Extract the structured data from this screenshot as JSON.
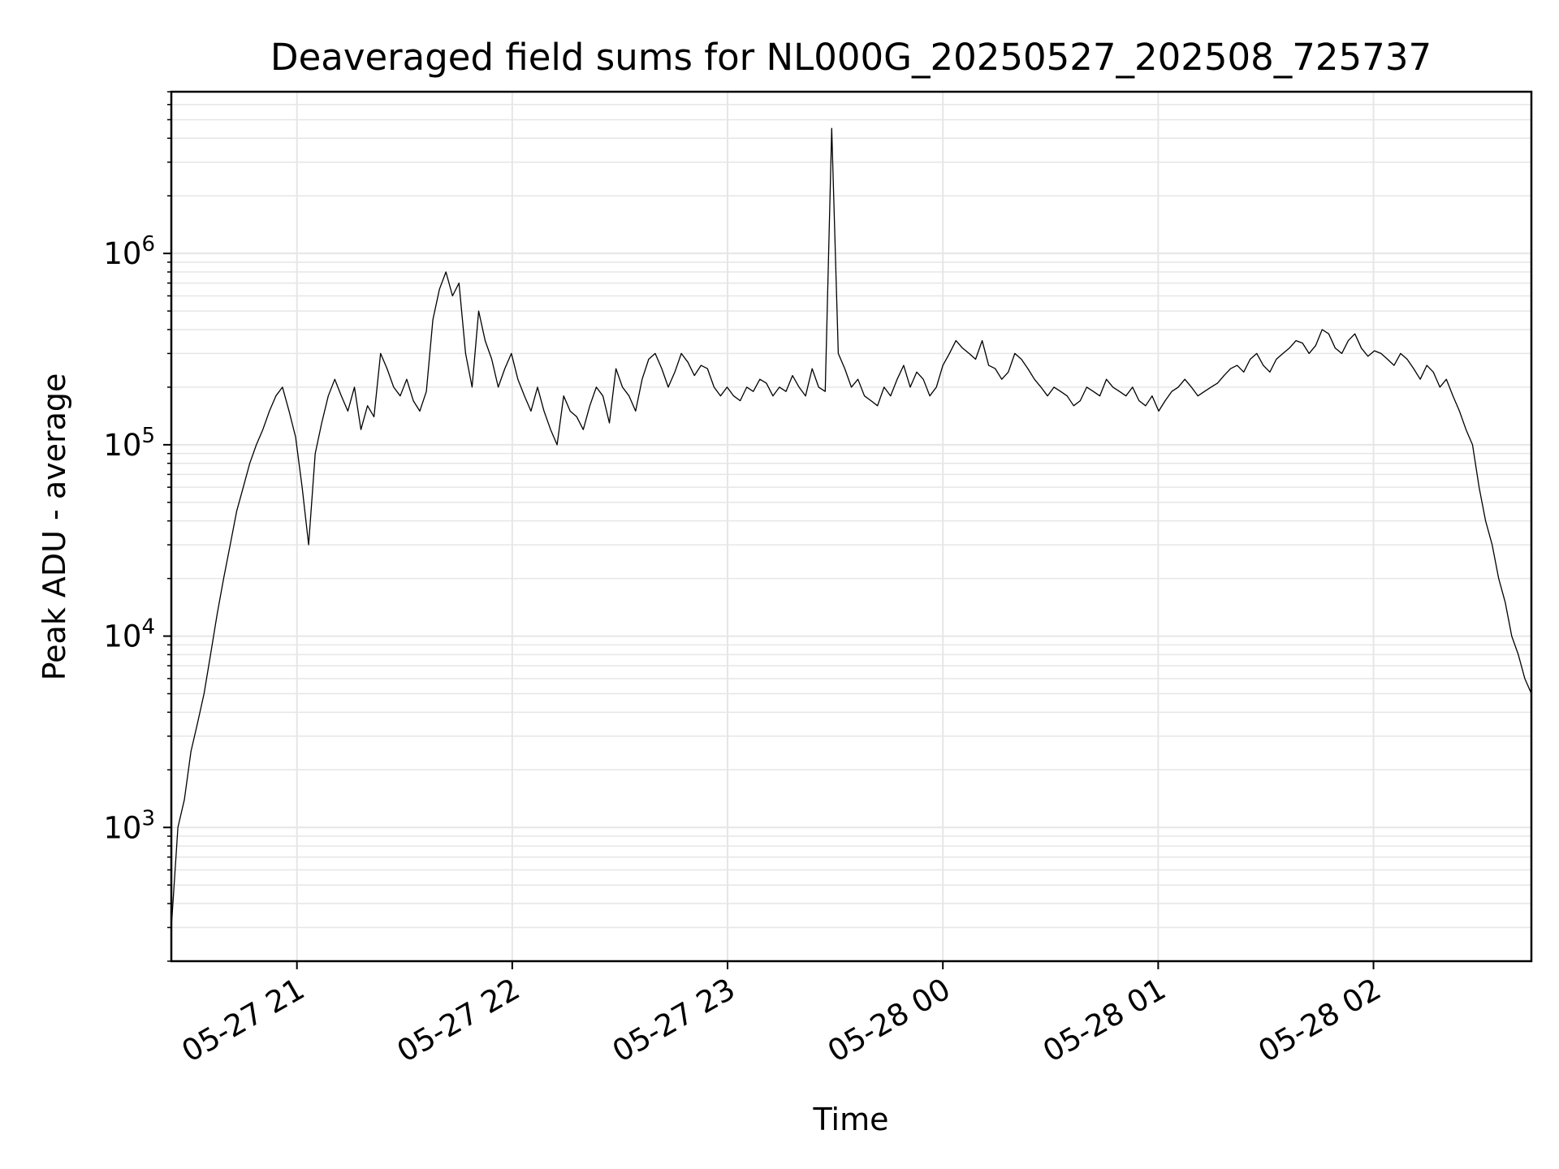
{
  "chart_data": {
    "type": "line",
    "title": "Deaveraged field sums for NL000G_20250527_202508_725737",
    "xlabel": "Time",
    "ylabel": "Peak ADU - average",
    "yscale": "log",
    "xlim": [
      "05-27 20:25",
      "05-28 02:44"
    ],
    "ylim": [
      200,
      7000000
    ],
    "grid": true,
    "line_color": "#000000",
    "x_ticks": [
      "05-27 21",
      "05-27 22",
      "05-27 23",
      "05-28 00",
      "05-28 01",
      "05-28 02"
    ],
    "y_ticks": [
      {
        "base": "10",
        "exp": "3",
        "value": 1000
      },
      {
        "base": "10",
        "exp": "4",
        "value": 10000
      },
      {
        "base": "10",
        "exp": "5",
        "value": 100000
      },
      {
        "base": "10",
        "exp": "6",
        "value": 1000000
      }
    ],
    "series": [
      {
        "x_start": "05-27 20:25",
        "x_end": "05-28 02:44",
        "values": [
          300,
          1000,
          1400,
          2500,
          3500,
          5000,
          8000,
          13000,
          20000,
          30000,
          45000,
          60000,
          80000,
          100000,
          120000,
          150000,
          180000,
          200000,
          150000,
          110000,
          60000,
          30000,
          90000,
          130000,
          180000,
          220000,
          180000,
          150000,
          200000,
          120000,
          160000,
          140000,
          300000,
          250000,
          200000,
          180000,
          220000,
          170000,
          150000,
          190000,
          450000,
          650000,
          800000,
          600000,
          700000,
          300000,
          200000,
          500000,
          350000,
          280000,
          200000,
          250000,
          300000,
          220000,
          180000,
          150000,
          200000,
          150000,
          120000,
          100000,
          180000,
          150000,
          140000,
          120000,
          160000,
          200000,
          180000,
          130000,
          250000,
          200000,
          180000,
          150000,
          220000,
          280000,
          300000,
          250000,
          200000,
          240000,
          300000,
          270000,
          230000,
          260000,
          250000,
          200000,
          180000,
          200000,
          180000,
          170000,
          200000,
          190000,
          220000,
          210000,
          180000,
          200000,
          190000,
          230000,
          200000,
          180000,
          250000,
          200000,
          190000,
          4500000,
          300000,
          250000,
          200000,
          220000,
          180000,
          170000,
          160000,
          200000,
          180000,
          220000,
          260000,
          200000,
          240000,
          220000,
          180000,
          200000,
          260000,
          300000,
          350000,
          320000,
          300000,
          280000,
          350000,
          260000,
          250000,
          220000,
          240000,
          300000,
          280000,
          250000,
          220000,
          200000,
          180000,
          200000,
          190000,
          180000,
          160000,
          170000,
          200000,
          190000,
          180000,
          220000,
          200000,
          190000,
          180000,
          200000,
          170000,
          160000,
          180000,
          150000,
          170000,
          190000,
          200000,
          220000,
          200000,
          180000,
          190000,
          200000,
          210000,
          230000,
          250000,
          260000,
          240000,
          280000,
          300000,
          260000,
          240000,
          280000,
          300000,
          320000,
          350000,
          340000,
          300000,
          330000,
          400000,
          380000,
          320000,
          300000,
          350000,
          380000,
          320000,
          290000,
          310000,
          300000,
          280000,
          260000,
          300000,
          280000,
          250000,
          220000,
          260000,
          240000,
          200000,
          220000,
          180000,
          150000,
          120000,
          100000,
          60000,
          40000,
          30000,
          20000,
          15000,
          10000,
          8000,
          6000,
          5000
        ]
      }
    ]
  }
}
